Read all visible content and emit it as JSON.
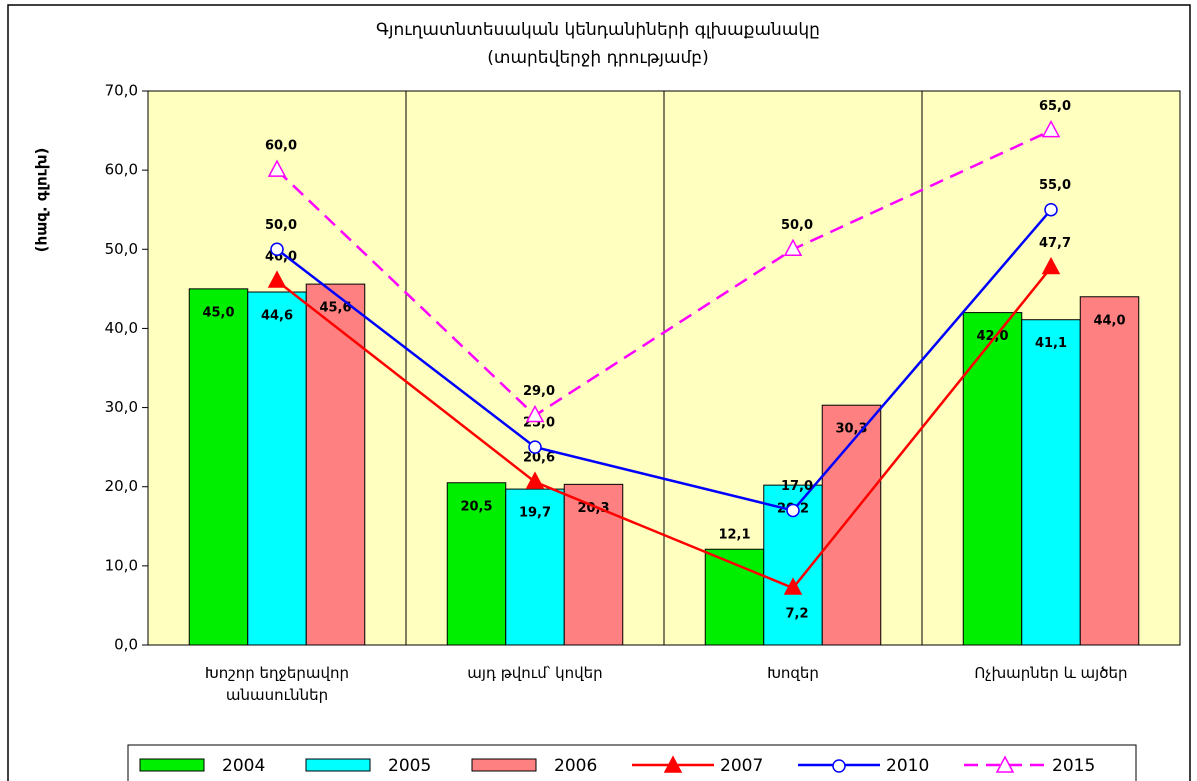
{
  "chart_data": {
    "type": "bar-line",
    "title": [
      "Գյուղատնտեսական կենդանիների գլխաքանակը",
      "(տարեվերջի դրությամբ)"
    ],
    "y_label": "(հազ. գլուխ)",
    "categories": [
      "Խոշոր եղջերավոր անասուններ",
      "այդ թվում՝ կովեր",
      "Խոզեր",
      "Ոչխարներ և այծեր"
    ],
    "ylim": [
      0,
      70
    ],
    "yticks": [
      {
        "value": 0,
        "label": "0,0"
      },
      {
        "value": 10,
        "label": "10,0"
      },
      {
        "value": 20,
        "label": "20,0"
      },
      {
        "value": 30,
        "label": "30,0"
      },
      {
        "value": 40,
        "label": "40,0"
      },
      {
        "value": 50,
        "label": "50,0"
      },
      {
        "value": 60,
        "label": "60,0"
      },
      {
        "value": 70,
        "label": "70,0"
      }
    ],
    "series": [
      {
        "name": "2004",
        "kind": "bar",
        "color": "#00ee00",
        "values": [
          45.0,
          20.5,
          12.1,
          42.0
        ],
        "value_labels": [
          "45,0",
          "20,5",
          "12,1",
          "42,0"
        ]
      },
      {
        "name": "2005",
        "kind": "bar",
        "color": "#00ffff",
        "values": [
          44.6,
          19.7,
          20.2,
          41.1
        ],
        "value_labels": [
          "44,6",
          "19,7",
          "20,2",
          "41,1"
        ]
      },
      {
        "name": "2006",
        "kind": "bar",
        "color": "#ff8080",
        "values": [
          45.6,
          20.3,
          30.3,
          44.0
        ],
        "value_labels": [
          "45,6",
          "20,3",
          "30,3",
          "44,0"
        ]
      },
      {
        "name": "2007",
        "kind": "line",
        "marker": "triangle-filled",
        "color": "#ff0000",
        "values": [
          46.0,
          20.6,
          7.2,
          47.7
        ],
        "value_labels": [
          "46,0",
          "20,6",
          "7,2",
          "47,7"
        ]
      },
      {
        "name": "2010",
        "kind": "line",
        "marker": "circle-open",
        "color": "#0000ff",
        "values": [
          50.0,
          25.0,
          17.0,
          55.0
        ],
        "value_labels": [
          "50,0",
          "25,0",
          "17,0",
          "55,0"
        ]
      },
      {
        "name": "2015",
        "kind": "line",
        "marker": "triangle-open",
        "dashed": true,
        "color": "#ff00ff",
        "values": [
          60.0,
          29.0,
          50.0,
          65.0
        ],
        "value_labels": [
          "60,0",
          "29,0",
          "50,0",
          "65,0"
        ]
      }
    ]
  }
}
